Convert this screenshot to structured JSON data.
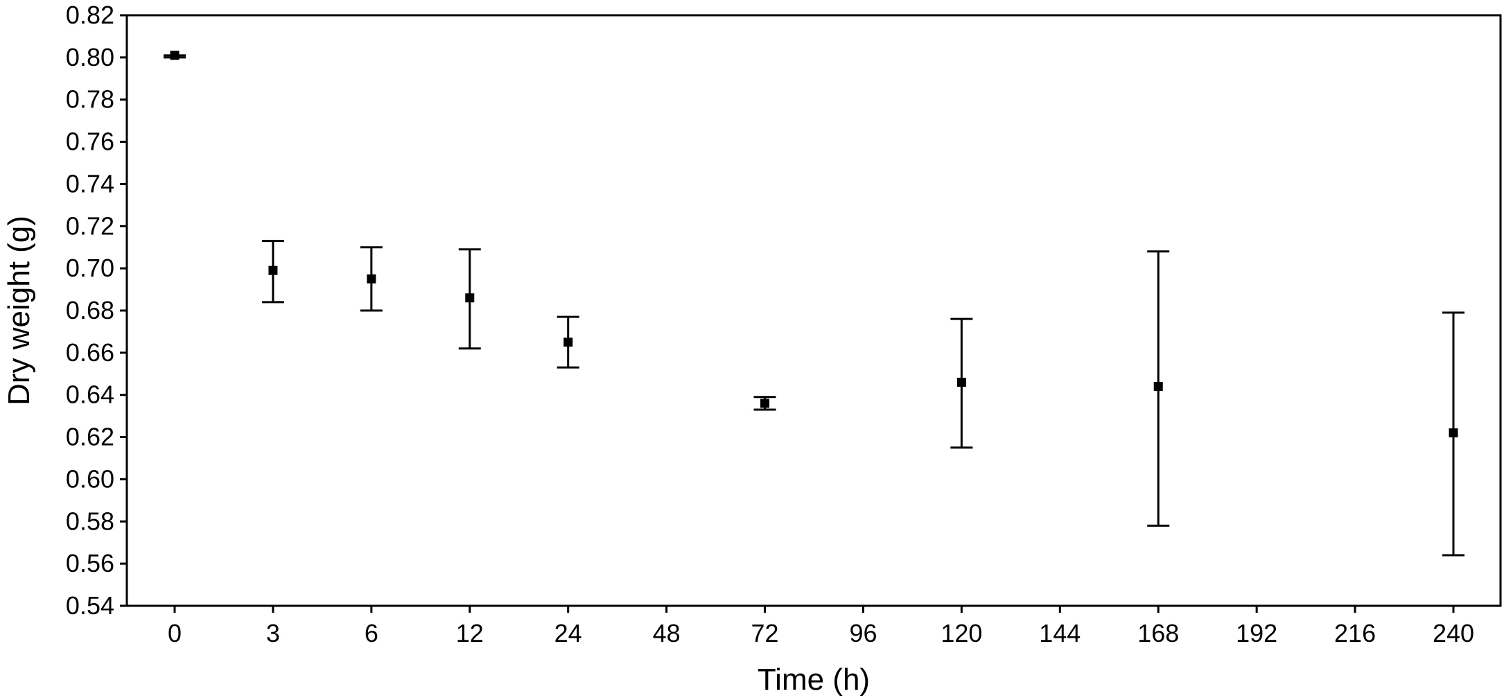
{
  "chart_data": {
    "type": "scatter",
    "title": "",
    "xlabel": "Time (h)",
    "ylabel": "Dry weight (g)",
    "categories": [
      "0",
      "3",
      "6",
      "12",
      "24",
      "48",
      "72",
      "96",
      "120",
      "144",
      "168",
      "192",
      "216",
      "240"
    ],
    "y_ticks": [
      "0.54",
      "0.56",
      "0.58",
      "0.60",
      "0.62",
      "0.64",
      "0.66",
      "0.68",
      "0.70",
      "0.72",
      "0.74",
      "0.76",
      "0.78",
      "0.80",
      "0.82"
    ],
    "ylim": [
      0.54,
      0.82
    ],
    "grid": false,
    "legend": "none",
    "points": [
      {
        "x": "0",
        "y": 0.801,
        "y_low": 0.8,
        "y_high": 0.801
      },
      {
        "x": "3",
        "y": 0.699,
        "y_low": 0.684,
        "y_high": 0.713
      },
      {
        "x": "6",
        "y": 0.695,
        "y_low": 0.68,
        "y_high": 0.71
      },
      {
        "x": "12",
        "y": 0.686,
        "y_low": 0.662,
        "y_high": 0.709
      },
      {
        "x": "24",
        "y": 0.665,
        "y_low": 0.653,
        "y_high": 0.677
      },
      {
        "x": "72",
        "y": 0.636,
        "y_low": 0.633,
        "y_high": 0.639
      },
      {
        "x": "120",
        "y": 0.646,
        "y_low": 0.615,
        "y_high": 0.676
      },
      {
        "x": "168",
        "y": 0.644,
        "y_low": 0.578,
        "y_high": 0.708
      },
      {
        "x": "240",
        "y": 0.622,
        "y_low": 0.564,
        "y_high": 0.679
      }
    ],
    "colors": {
      "marker": "#000000",
      "axis": "#000000",
      "background": "#ffffff"
    }
  }
}
